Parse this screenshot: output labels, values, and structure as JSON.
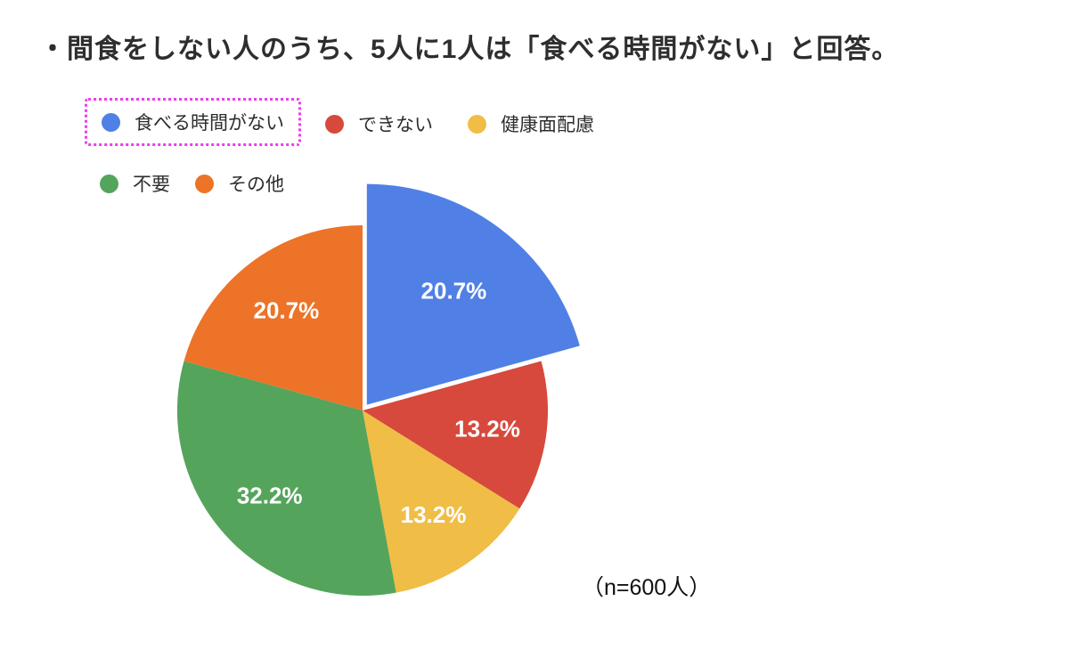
{
  "title": "・間食をしない人のうち、5人に1人は「食べる時間がない」と回答。",
  "sample_note": "（n=600人）",
  "chart_data": {
    "type": "pie",
    "categories": [
      "食べる時間がない",
      "できない",
      "健康面配慮",
      "不要",
      "その他"
    ],
    "values": [
      20.7,
      13.2,
      13.2,
      32.2,
      20.7
    ],
    "value_labels": [
      "20.7%",
      "13.2%",
      "13.2%",
      "32.2%",
      "20.7%"
    ],
    "unit": "%",
    "colors": [
      "#5080e6",
      "#d6493c",
      "#f0bd46",
      "#55a45c",
      "#ec7327"
    ],
    "start_angle_deg": 0,
    "direction": "clockwise",
    "exploded_slice_index": 0,
    "highlighted_legend_index": 0,
    "highlight_border_color": "#ee3cee",
    "label_text_color": "#ffffff",
    "legend_position": "top-left-two-rows",
    "title": "",
    "sample_size_note": "（n=600人）"
  }
}
